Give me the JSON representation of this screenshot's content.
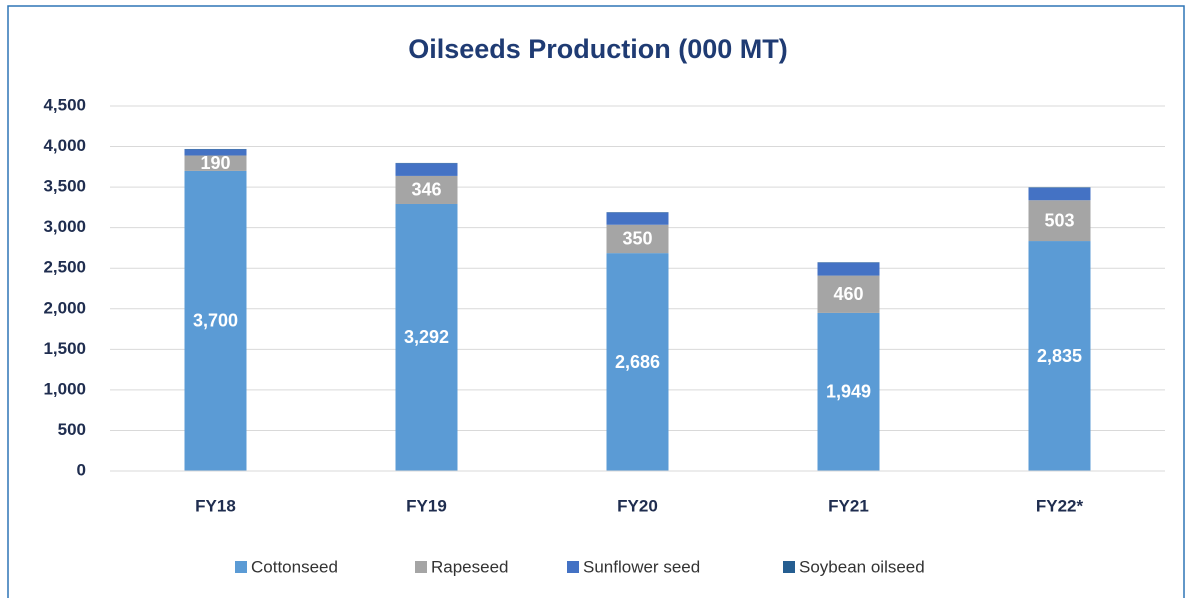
{
  "chart_data": {
    "type": "stacked_bar",
    "title": "Oilseeds Production (000 MT)",
    "categories": [
      "FY18",
      "FY19",
      "FY20",
      "FY21",
      "FY22*"
    ],
    "series": [
      {
        "name": "Cottonseed",
        "color": "#5b9bd5",
        "values": [
          3700,
          3292,
          2686,
          1949,
          2835
        ],
        "value_labels": [
          "3,700",
          "3,292",
          "2,686",
          "1,949",
          "2,835"
        ]
      },
      {
        "name": "Rapeseed",
        "color": "#a5a5a5",
        "values": [
          190,
          346,
          350,
          460,
          503
        ],
        "value_labels": [
          "190",
          "346",
          "350",
          "460",
          "503"
        ]
      },
      {
        "name": "Sunflower seed",
        "color": "#4472c4",
        "values": [
          75,
          155,
          150,
          160,
          155
        ]
      },
      {
        "name": "Soybean oilseed",
        "color": "#255e91",
        "values": [
          5,
          5,
          5,
          5,
          5
        ]
      }
    ],
    "ylim": [
      0,
      4500
    ],
    "yticks": [
      0,
      500,
      {
        "value": 1000,
        "label": "1,000"
      },
      {
        "value": 1500,
        "label": "1,500"
      },
      {
        "value": 2000,
        "label": "2,000"
      },
      {
        "value": 2500,
        "label": "2,500"
      },
      {
        "value": 3000,
        "label": "3,000"
      },
      {
        "value": 3500,
        "label": "3,500"
      },
      {
        "value": 4000,
        "label": "4,000"
      },
      {
        "value": 4500,
        "label": "4,500"
      }
    ],
    "grid": true,
    "legend": "bottom"
  }
}
